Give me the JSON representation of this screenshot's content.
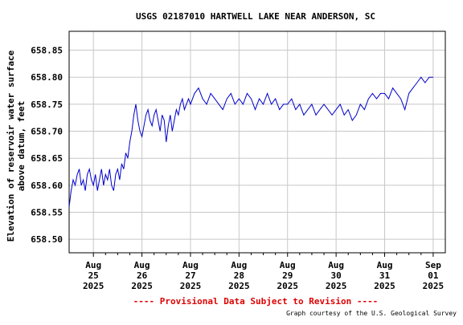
{
  "chart_data": {
    "type": "line",
    "title": "USGS 02187010 HARTWELL LAKE NEAR ANDERSON, SC",
    "ylabel_line1": "Elevation of reservoir water surface",
    "ylabel_line2": "above datum, feet",
    "xlabel": "",
    "ylim": [
      658.475,
      658.885
    ],
    "xlim": [
      "2025-08-24 12:00",
      "2025-09-01 06:00"
    ],
    "y_ticks": [
      "658.50",
      "658.55",
      "658.60",
      "658.65",
      "658.70",
      "658.75",
      "658.80",
      "658.85"
    ],
    "x_ticks": [
      {
        "month": "Aug",
        "day": "25",
        "year": "2025"
      },
      {
        "month": "Aug",
        "day": "26",
        "year": "2025"
      },
      {
        "month": "Aug",
        "day": "27",
        "year": "2025"
      },
      {
        "month": "Aug",
        "day": "28",
        "year": "2025"
      },
      {
        "month": "Aug",
        "day": "29",
        "year": "2025"
      },
      {
        "month": "Aug",
        "day": "30",
        "year": "2025"
      },
      {
        "month": "Aug",
        "day": "31",
        "year": "2025"
      },
      {
        "month": "Sep",
        "day": "01",
        "year": "2025"
      }
    ],
    "grid": true,
    "series": [
      {
        "color": "#0000cc",
        "x": [
          "2025-08-24 12:00",
          "2025-08-24 13:00",
          "2025-08-24 14:00",
          "2025-08-24 15:00",
          "2025-08-24 16:00",
          "2025-08-24 17:00",
          "2025-08-24 18:00",
          "2025-08-24 19:00",
          "2025-08-24 20:00",
          "2025-08-24 21:00",
          "2025-08-24 22:00",
          "2025-08-24 23:00",
          "2025-08-25 00:00",
          "2025-08-25 01:00",
          "2025-08-25 02:00",
          "2025-08-25 03:00",
          "2025-08-25 04:00",
          "2025-08-25 05:00",
          "2025-08-25 06:00",
          "2025-08-25 07:00",
          "2025-08-25 08:00",
          "2025-08-25 09:00",
          "2025-08-25 10:00",
          "2025-08-25 11:00",
          "2025-08-25 12:00",
          "2025-08-25 13:00",
          "2025-08-25 14:00",
          "2025-08-25 15:00",
          "2025-08-25 16:00",
          "2025-08-25 17:00",
          "2025-08-25 18:00",
          "2025-08-25 19:00",
          "2025-08-25 20:00",
          "2025-08-25 21:00",
          "2025-08-25 22:00",
          "2025-08-25 23:00",
          "2025-08-26 00:00",
          "2025-08-26 01:00",
          "2025-08-26 02:00",
          "2025-08-26 03:00",
          "2025-08-26 04:00",
          "2025-08-26 05:00",
          "2025-08-26 06:00",
          "2025-08-26 07:00",
          "2025-08-26 08:00",
          "2025-08-26 09:00",
          "2025-08-26 10:00",
          "2025-08-26 11:00",
          "2025-08-26 12:00",
          "2025-08-26 13:00",
          "2025-08-26 14:00",
          "2025-08-26 15:00",
          "2025-08-26 16:00",
          "2025-08-26 17:00",
          "2025-08-26 18:00",
          "2025-08-26 19:00",
          "2025-08-26 20:00",
          "2025-08-26 21:00",
          "2025-08-26 22:00",
          "2025-08-26 23:00",
          "2025-08-27 00:00",
          "2025-08-27 02:00",
          "2025-08-27 04:00",
          "2025-08-27 06:00",
          "2025-08-27 08:00",
          "2025-08-27 10:00",
          "2025-08-27 12:00",
          "2025-08-27 14:00",
          "2025-08-27 16:00",
          "2025-08-27 18:00",
          "2025-08-27 20:00",
          "2025-08-27 22:00",
          "2025-08-28 00:00",
          "2025-08-28 02:00",
          "2025-08-28 04:00",
          "2025-08-28 06:00",
          "2025-08-28 08:00",
          "2025-08-28 10:00",
          "2025-08-28 12:00",
          "2025-08-28 14:00",
          "2025-08-28 16:00",
          "2025-08-28 18:00",
          "2025-08-28 20:00",
          "2025-08-28 22:00",
          "2025-08-29 00:00",
          "2025-08-29 02:00",
          "2025-08-29 04:00",
          "2025-08-29 06:00",
          "2025-08-29 08:00",
          "2025-08-29 10:00",
          "2025-08-29 12:00",
          "2025-08-29 14:00",
          "2025-08-29 16:00",
          "2025-08-29 18:00",
          "2025-08-29 20:00",
          "2025-08-29 22:00",
          "2025-08-30 00:00",
          "2025-08-30 02:00",
          "2025-08-30 04:00",
          "2025-08-30 06:00",
          "2025-08-30 08:00",
          "2025-08-30 10:00",
          "2025-08-30 12:00",
          "2025-08-30 14:00",
          "2025-08-30 16:00",
          "2025-08-30 18:00",
          "2025-08-30 20:00",
          "2025-08-30 22:00",
          "2025-08-31 00:00",
          "2025-08-31 02:00",
          "2025-08-31 04:00",
          "2025-08-31 06:00",
          "2025-08-31 08:00",
          "2025-08-31 10:00",
          "2025-08-31 12:00",
          "2025-08-31 14:00",
          "2025-08-31 16:00",
          "2025-08-31 18:00",
          "2025-08-31 20:00",
          "2025-08-31 22:00",
          "2025-09-01 00:00"
        ],
        "y": [
          658.56,
          658.59,
          658.61,
          658.6,
          658.62,
          658.63,
          658.6,
          658.61,
          658.59,
          658.62,
          658.63,
          658.61,
          658.6,
          658.62,
          658.59,
          658.61,
          658.63,
          658.6,
          658.62,
          658.61,
          658.63,
          658.6,
          658.59,
          658.62,
          658.63,
          658.61,
          658.64,
          658.63,
          658.66,
          658.65,
          658.68,
          658.7,
          658.73,
          658.75,
          658.72,
          658.7,
          658.69,
          658.71,
          658.73,
          658.74,
          658.72,
          658.71,
          658.73,
          658.74,
          658.72,
          658.7,
          658.73,
          658.72,
          658.68,
          658.71,
          658.73,
          658.7,
          658.72,
          658.74,
          658.73,
          658.75,
          658.76,
          658.74,
          658.75,
          658.76,
          658.75,
          658.77,
          658.78,
          658.76,
          658.75,
          658.77,
          658.76,
          658.75,
          658.74,
          658.76,
          658.77,
          658.75,
          658.76,
          658.75,
          658.77,
          658.76,
          658.74,
          658.76,
          658.75,
          658.77,
          658.75,
          658.76,
          658.74,
          658.75,
          658.75,
          658.76,
          658.74,
          658.75,
          658.73,
          658.74,
          658.75,
          658.73,
          658.74,
          658.75,
          658.74,
          658.73,
          658.74,
          658.75,
          658.73,
          658.74,
          658.72,
          658.73,
          658.75,
          658.74,
          658.76,
          658.77,
          658.76,
          658.77,
          658.77,
          658.76,
          658.78,
          658.77,
          658.76,
          658.74,
          658.77,
          658.78,
          658.79,
          658.8,
          658.79,
          658.8,
          658.8
        ]
      }
    ]
  },
  "footer": {
    "provisional": "---- Provisional Data Subject to Revision ----",
    "credit": "Graph courtesy of the U.S. Geological Survey"
  }
}
